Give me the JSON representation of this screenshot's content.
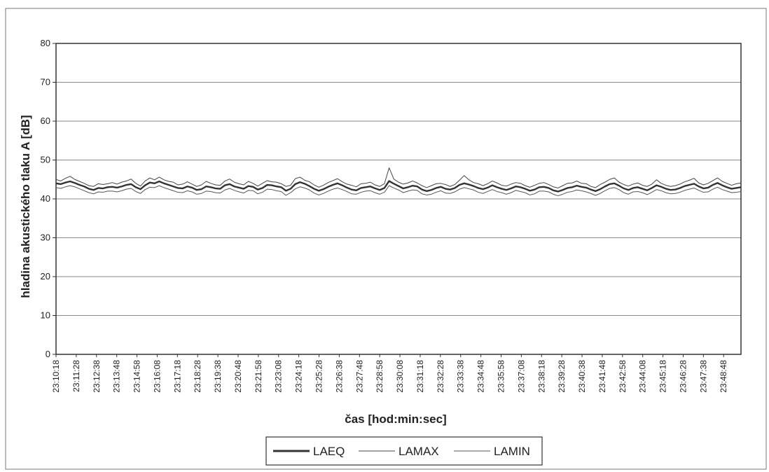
{
  "chart_data": {
    "type": "line",
    "title": "",
    "xlabel": "čas [hod:min:sec]",
    "ylabel": "hladina akustického tlaku A [dB]",
    "ylim": [
      0,
      80
    ],
    "yticks": [
      0,
      10,
      20,
      30,
      40,
      50,
      60,
      70,
      80
    ],
    "grid": true,
    "legend_position": "bottom",
    "x_ticks": [
      "23:10:18",
      "23:11:28",
      "23:12:38",
      "23:13:48",
      "23:14:58",
      "23:16:08",
      "23:17:18",
      "23:18:28",
      "23:19:38",
      "23:20:48",
      "23:21:58",
      "23:23:08",
      "23:24:18",
      "23:25:28",
      "23:26:38",
      "23:27:48",
      "23:28:58",
      "23:30:08",
      "23:31:18",
      "23:32:28",
      "23:33:38",
      "23:34:48",
      "23:35:58",
      "23:37:08",
      "23:38:18",
      "23:39:28",
      "23:40:38",
      "23:41:48",
      "23:42:58",
      "23:44:08",
      "23:45:18",
      "23:46:28",
      "23:47:38",
      "23:48:48"
    ],
    "x_range": [
      "23:10:18",
      "23:49:48"
    ],
    "series": [
      {
        "name": "LAEQ",
        "color": "#333333",
        "values": [
          44.0,
          43.8,
          44.2,
          44.5,
          44.1,
          43.6,
          43.2,
          42.6,
          42.3,
          42.8,
          42.7,
          43.0,
          43.1,
          42.9,
          43.2,
          43.6,
          43.8,
          43.0,
          42.5,
          43.5,
          44.2,
          44.0,
          44.5,
          44.0,
          43.6,
          43.2,
          42.8,
          42.7,
          43.2,
          42.9,
          42.3,
          42.5,
          43.2,
          43.0,
          42.7,
          42.6,
          43.5,
          43.8,
          43.2,
          42.9,
          42.6,
          43.3,
          43.1,
          42.4,
          42.8,
          43.6,
          43.5,
          43.2,
          43.0,
          42.1,
          42.6,
          43.8,
          44.3,
          43.9,
          43.3,
          42.6,
          42.1,
          42.5,
          43.1,
          43.6,
          44.0,
          43.5,
          42.9,
          42.4,
          42.2,
          42.8,
          43.0,
          43.2,
          42.7,
          42.3,
          42.8,
          44.6,
          43.9,
          43.3,
          42.7,
          43.0,
          43.4,
          43.2,
          42.4,
          42.0,
          42.3,
          42.8,
          43.1,
          42.6,
          42.4,
          42.8,
          43.6,
          44.0,
          43.7,
          43.3,
          42.8,
          42.5,
          42.9,
          43.5,
          43.0,
          42.6,
          42.3,
          42.7,
          43.2,
          43.0,
          42.6,
          42.1,
          42.4,
          43.0,
          43.1,
          42.8,
          42.2,
          41.9,
          42.3,
          42.8,
          43.0,
          43.4,
          43.1,
          42.9,
          42.4,
          42.0,
          42.5,
          43.2,
          43.8,
          44.0,
          43.4,
          42.7,
          42.3,
          42.8,
          43.0,
          42.6,
          42.2,
          42.8,
          43.5,
          43.1,
          42.6,
          42.3,
          42.4,
          42.8,
          43.3,
          43.6,
          43.9,
          43.2,
          42.7,
          42.9,
          43.6,
          44.1,
          43.5,
          43.0,
          42.6,
          42.8,
          43.0
        ]
      },
      {
        "name": "LAMAX",
        "color": "#444444",
        "values": [
          45.0,
          44.6,
          45.3,
          45.8,
          45.0,
          44.5,
          44.0,
          43.4,
          43.2,
          43.9,
          43.7,
          43.9,
          44.2,
          43.8,
          44.3,
          44.6,
          45.1,
          44.0,
          43.3,
          44.6,
          45.4,
          44.9,
          45.6,
          44.9,
          44.5,
          44.3,
          43.6,
          43.8,
          44.4,
          43.8,
          43.2,
          43.6,
          44.5,
          44.0,
          43.6,
          43.5,
          44.6,
          45.1,
          44.3,
          43.9,
          43.6,
          44.5,
          44.0,
          43.3,
          44.0,
          44.7,
          44.4,
          44.3,
          43.9,
          43.2,
          43.5,
          45.2,
          45.6,
          44.8,
          44.4,
          43.6,
          43.0,
          43.5,
          44.2,
          44.7,
          45.2,
          44.4,
          43.8,
          43.5,
          43.1,
          43.9,
          44.0,
          44.3,
          43.6,
          43.2,
          43.9,
          48.0,
          45.1,
          44.3,
          43.8,
          44.1,
          44.6,
          44.1,
          43.4,
          42.9,
          43.4,
          43.9,
          44.0,
          43.7,
          43.2,
          43.7,
          44.8,
          46.0,
          44.9,
          44.2,
          43.9,
          43.4,
          43.9,
          44.6,
          44.1,
          43.5,
          43.3,
          43.8,
          44.2,
          44.0,
          43.4,
          43.0,
          43.5,
          44.0,
          44.2,
          43.7,
          43.1,
          42.8,
          43.4,
          44.0,
          44.1,
          44.6,
          44.0,
          43.9,
          43.2,
          42.9,
          43.7,
          44.3,
          45.0,
          45.4,
          44.3,
          43.7,
          43.3,
          43.8,
          44.1,
          43.5,
          43.2,
          43.8,
          44.9,
          44.0,
          43.5,
          43.2,
          43.4,
          43.8,
          44.4,
          44.8,
          45.3,
          44.1,
          43.6,
          44.0,
          44.7,
          45.4,
          44.5,
          44.0,
          43.5,
          43.9,
          44.1
        ]
      },
      {
        "name": "LAMIN",
        "color": "#555555",
        "values": [
          42.9,
          42.7,
          43.1,
          43.4,
          43.1,
          42.6,
          42.1,
          41.6,
          41.3,
          41.8,
          41.7,
          42.0,
          42.0,
          41.8,
          42.1,
          42.5,
          42.7,
          41.9,
          41.4,
          42.4,
          43.0,
          42.9,
          43.4,
          42.9,
          42.5,
          42.1,
          41.7,
          41.6,
          42.1,
          41.8,
          41.2,
          41.4,
          42.0,
          41.9,
          41.6,
          41.5,
          42.3,
          42.7,
          42.2,
          41.8,
          41.5,
          42.2,
          42.1,
          41.3,
          41.7,
          42.5,
          42.4,
          42.1,
          41.9,
          40.9,
          41.6,
          42.6,
          43.1,
          42.8,
          42.3,
          41.5,
          41.0,
          41.4,
          42.0,
          42.5,
          42.8,
          42.4,
          41.9,
          41.3,
          41.2,
          41.7,
          42.0,
          42.1,
          41.6,
          41.2,
          41.7,
          43.4,
          42.8,
          42.3,
          41.6,
          42.0,
          42.3,
          42.2,
          41.3,
          41.0,
          41.2,
          41.7,
          42.1,
          41.5,
          41.4,
          41.8,
          42.5,
          42.9,
          42.6,
          42.3,
          41.7,
          41.4,
          41.9,
          42.4,
          41.9,
          41.6,
          41.2,
          41.6,
          42.2,
          41.9,
          41.6,
          41.0,
          41.3,
          42.0,
          42.0,
          41.8,
          41.2,
          40.8,
          41.2,
          41.7,
          41.9,
          42.3,
          42.1,
          41.8,
          41.4,
          40.9,
          41.4,
          42.1,
          42.7,
          42.9,
          42.4,
          41.6,
          41.2,
          41.8,
          41.9,
          41.6,
          41.1,
          41.7,
          42.4,
          42.1,
          41.6,
          41.3,
          41.4,
          41.7,
          42.2,
          42.5,
          42.8,
          42.2,
          41.7,
          41.8,
          42.5,
          43.0,
          42.4,
          42.0,
          41.6,
          41.7,
          41.9
        ]
      }
    ]
  }
}
